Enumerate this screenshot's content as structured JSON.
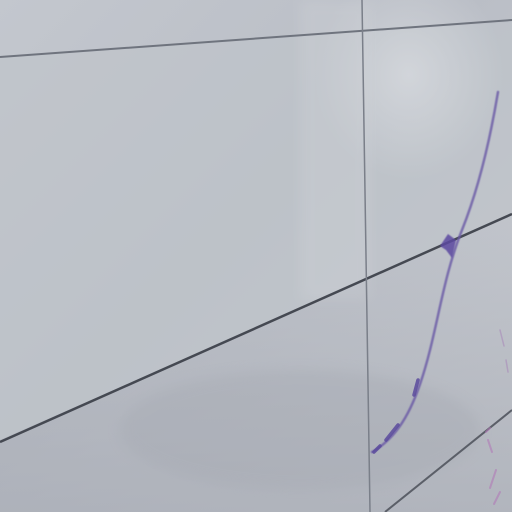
{
  "scene": {
    "subject": "whiteboard-surface",
    "colors": {
      "board_light": "#c9ccd2",
      "board_mid": "#b9bdc5",
      "board_shadow": "#a9adb6",
      "line_dark": "#4a4e57",
      "line_faint": "#7d828c",
      "marker_purple": "#6a4fa0",
      "marker_pink": "#b07ab8"
    }
  }
}
